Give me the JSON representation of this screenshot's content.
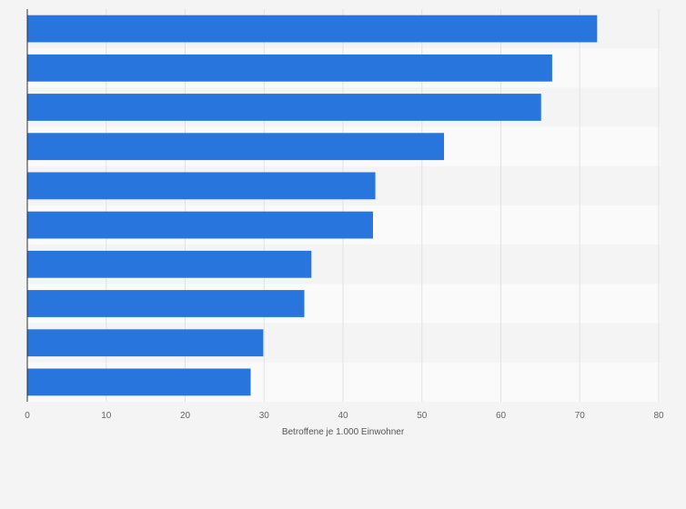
{
  "chart_data": {
    "type": "bar",
    "orientation": "horizontal",
    "categories": [
      "",
      "",
      "",
      "",
      "",
      "",
      "",
      "",
      "",
      ""
    ],
    "values": [
      72.2,
      66.5,
      65.1,
      52.8,
      44.1,
      43.8,
      36.0,
      35.1,
      29.9,
      28.3
    ],
    "xlabel": "Betroffene je 1.000 Einwohner",
    "ylabel": "",
    "xlim": [
      0,
      80
    ],
    "xticks": [
      0,
      10,
      20,
      30,
      40,
      50,
      60,
      70,
      80
    ],
    "xtick_labels": [
      "0",
      "10",
      "20",
      "30",
      "40",
      "50",
      "60",
      "70",
      "80"
    ],
    "grid": "vertical",
    "colors": {
      "bar": "#2876dd",
      "background": "#f4f4f4",
      "band_light": "#fafafa",
      "band_dark": "#f4f4f4",
      "gridline": "#e2e2e2",
      "axis": "#333333"
    }
  }
}
